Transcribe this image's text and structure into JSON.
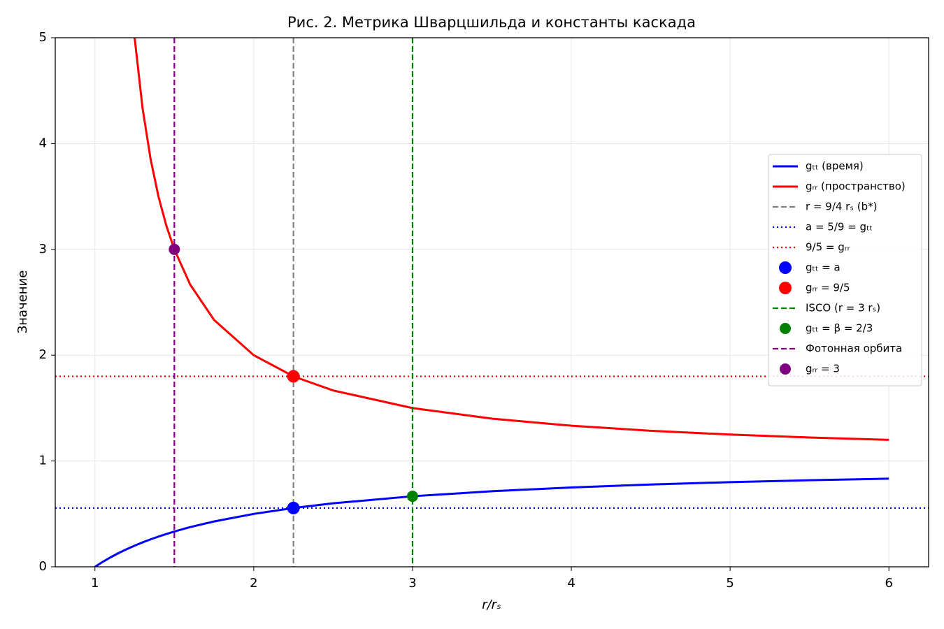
{
  "chart_data": {
    "type": "line",
    "title": "Рис. 2. Метрика Шварцшильда и константы каскада",
    "xlabel": "r/rₛ",
    "ylabel": "Значение",
    "xlim": [
      0.75,
      6.25
    ],
    "ylim": [
      0,
      5
    ],
    "xticks": [
      1,
      2,
      3,
      4,
      5,
      6
    ],
    "yticks": [
      0,
      1,
      2,
      3,
      4,
      5
    ],
    "grid": true,
    "legend_position": "center right",
    "x": [
      1,
      1.05,
      1.1,
      1.15,
      1.2,
      1.25,
      1.3,
      1.35,
      1.4,
      1.45,
      1.5,
      1.6,
      1.75,
      2,
      2.25,
      2.5,
      3,
      3.5,
      4,
      4.5,
      5,
      5.5,
      6
    ],
    "series": [
      {
        "name": "gₜₜ (время)",
        "color": "#0000ff",
        "values": [
          0,
          0.0476,
          0.0909,
          0.1304,
          0.1667,
          0.2,
          0.2308,
          0.2593,
          0.2857,
          0.3103,
          0.3333,
          0.375,
          0.4286,
          0.5,
          0.5556,
          0.6,
          0.6667,
          0.7143,
          0.75,
          0.7778,
          0.8,
          0.8182,
          0.8333
        ]
      },
      {
        "name": "gᵣᵣ (пространство)",
        "color": "#ff0000",
        "values": [
          null,
          null,
          null,
          null,
          null,
          5,
          4.3333,
          3.8571,
          3.5,
          3.2222,
          3,
          2.6667,
          2.3333,
          2,
          1.8,
          1.6667,
          1.5,
          1.4,
          1.3333,
          1.2857,
          1.25,
          1.2222,
          1.2
        ]
      }
    ],
    "overlays": [
      {
        "kind": "vline",
        "name": "r = 9/4 rₛ (b*)",
        "color": "#808080",
        "x": 2.25
      },
      {
        "kind": "hline",
        "name": "a = 5/9 = gₜₜ",
        "color": "#0000ff",
        "y": 0.5556
      },
      {
        "kind": "hline",
        "name": "9/5 = gᵣᵣ",
        "color": "#ff0000",
        "y": 1.8
      },
      {
        "kind": "point",
        "name": "gₜₜ = a",
        "color": "#0000ff",
        "x": 2.25,
        "y": 0.5556,
        "size": 9
      },
      {
        "kind": "point",
        "name": "gᵣᵣ = 9/5",
        "color": "#ff0000",
        "x": 2.25,
        "y": 1.8,
        "size": 9
      },
      {
        "kind": "vline",
        "name": "ISCO (r = 3 rₛ)",
        "color": "#008000",
        "x": 3
      },
      {
        "kind": "point",
        "name": "gₜₜ = β = 2/3",
        "color": "#008000",
        "x": 3,
        "y": 0.6667,
        "size": 8
      },
      {
        "kind": "vline",
        "name": "Фотонная орбита",
        "color": "#800080",
        "x": 1.5
      },
      {
        "kind": "point",
        "name": "gᵣᵣ = 3",
        "color": "#800080",
        "x": 1.5,
        "y": 3,
        "size": 8
      }
    ]
  }
}
